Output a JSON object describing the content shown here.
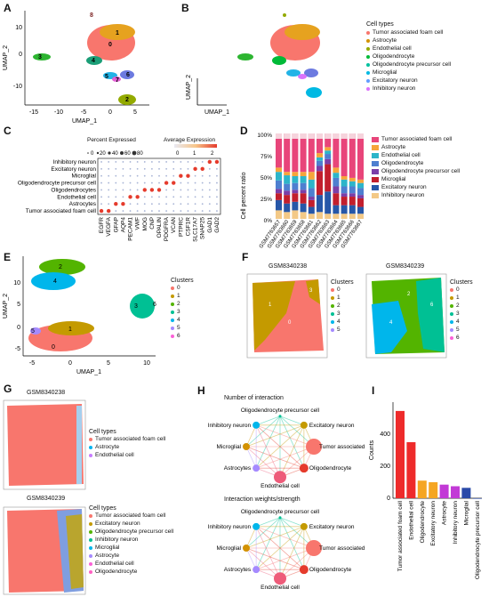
{
  "panels": {
    "A": {
      "label": "A",
      "xlabel": "UMAP_1",
      "ylabel": "UMAP_2",
      "xticks": [
        "-15",
        "-10",
        "-5",
        "0",
        "5"
      ],
      "yticks": [
        "10",
        "0",
        "-10"
      ],
      "cluster_ids": [
        "0",
        "1",
        "2",
        "3",
        "4",
        "5",
        "6",
        "7",
        "8"
      ]
    },
    "B": {
      "label": "B",
      "xlabel": "UMAP_1",
      "ylabel": "UMAP_2",
      "legend_title": "Cell types",
      "legend": [
        {
          "name": "Tumor associated foam cell",
          "color": "#f8766d"
        },
        {
          "name": "Astrocyte",
          "color": "#d39200"
        },
        {
          "name": "Endothelial cell",
          "color": "#93aa00"
        },
        {
          "name": "Oligodendrocyte",
          "color": "#00ba38"
        },
        {
          "name": "Oligodendrocyte precursor cell",
          "color": "#00c19f"
        },
        {
          "name": "Microglial",
          "color": "#00b9e3"
        },
        {
          "name": "Excitatory neuron",
          "color": "#619cff"
        },
        {
          "name": "Inhibitory neuron",
          "color": "#db72fb"
        }
      ]
    },
    "C": {
      "label": "C",
      "pct_title": "Percent Expressed",
      "pct_ticks": [
        "0",
        "20",
        "40",
        "60",
        "80"
      ],
      "avg_title": "Average Expression",
      "avg_ticks": [
        "0",
        "1",
        "2"
      ],
      "rows": [
        "Inhibitory neuron",
        "Excitatory neuron",
        "Microglial",
        "Oligodendrocyte precursor cell",
        "Oligodendrocytes",
        "Endothelial cell",
        "Astrocytes",
        "Tumor associated foam cell"
      ],
      "genes": [
        "EGFR",
        "VEGFA",
        "GFAP",
        "AQP4",
        "PECAM1",
        "VWF",
        "MOG",
        "CNP",
        "OPALIN",
        "PDGFRA",
        "VCAN",
        "PTPRC",
        "CSF1R",
        "SLC17A7",
        "SNAP25",
        "GAD1",
        "GAD2"
      ]
    },
    "D": {
      "label": "D",
      "ylabel": "Cell percent ratio",
      "yticks": [
        "100%",
        "75%",
        "50%",
        "25%",
        "0%"
      ],
      "samples": [
        "GSM7763657",
        "GSM7763660",
        "GSM7763659",
        "GSM7763658",
        "GSM7763661",
        "GSM7763662",
        "GSM7763663",
        "GSM7763664",
        "GSM7763665",
        "GSM7763666",
        "GSM7763667"
      ],
      "legend": [
        {
          "name": "Tumor associated foam cell",
          "color": "#e8457a"
        },
        {
          "name": "Astrocyte",
          "color": "#f6a53a"
        },
        {
          "name": "Endothelial cell",
          "color": "#2db5c9"
        },
        {
          "name": "Oligodendrocyte",
          "color": "#4e7fd0"
        },
        {
          "name": "Oligodendrocyte precursor cell",
          "color": "#7b3fa8"
        },
        {
          "name": "Microglial",
          "color": "#c21f2d"
        },
        {
          "name": "Excitatory neuron",
          "color": "#2757a8"
        },
        {
          "name": "Inhibitory neuron",
          "color": "#f3c987"
        }
      ]
    },
    "E": {
      "label": "E",
      "xlabel": "UMAP_1",
      "ylabel": "UMAP_2",
      "xticks": [
        "-5",
        "0",
        "5",
        "10"
      ],
      "yticks": [
        "10",
        "5",
        "0",
        "-5"
      ],
      "legend_title": "Clusters",
      "clusters": [
        {
          "name": "0",
          "color": "#f8766d"
        },
        {
          "name": "1",
          "color": "#c49a00"
        },
        {
          "name": "2",
          "color": "#53b400"
        },
        {
          "name": "3",
          "color": "#00c094"
        },
        {
          "name": "4",
          "color": "#00b6eb"
        },
        {
          "name": "5",
          "color": "#a58aff"
        },
        {
          "name": "6",
          "color": "#fb61d7"
        }
      ]
    },
    "F": {
      "label": "F",
      "sample1": "GSM8340238",
      "sample2": "GSM8340239",
      "legend_title": "Clusters",
      "clusters1": [
        "0",
        "1",
        "2",
        "3",
        "4",
        "5"
      ],
      "clusters2": [
        "0",
        "1",
        "2",
        "3",
        "4",
        "5",
        "6"
      ]
    },
    "G": {
      "label": "G",
      "sample1": "GSM8340238",
      "sample2": "GSM8340239",
      "legend_title": "Cell types",
      "legend1": [
        {
          "name": "Tumor associated foam cell",
          "color": "#f8766d"
        },
        {
          "name": "Astrocyte",
          "color": "#00b4f0"
        },
        {
          "name": "Endothelial cell",
          "color": "#c77cff"
        }
      ],
      "legend2": [
        {
          "name": "Tumor associated foam cell",
          "color": "#f8766d"
        },
        {
          "name": "Excitatory neuron",
          "color": "#c49a00"
        },
        {
          "name": "Oligodendrocyte precursor cell",
          "color": "#53b400"
        },
        {
          "name": "Inhibitory neuron",
          "color": "#00c094"
        },
        {
          "name": "Microglial",
          "color": "#00b6eb"
        },
        {
          "name": "Astrocyte",
          "color": "#a58aff"
        },
        {
          "name": "Endothelial cell",
          "color": "#fb61d7"
        },
        {
          "name": "Oligodendrocyte",
          "color": "#ff61c3"
        }
      ]
    },
    "H": {
      "label": "H",
      "title1": "Number of interaction",
      "title2": "Interaction weights/strength",
      "nodes": [
        "Oligodendrocyte precursor cell",
        "Excitatory neuron",
        "Tumor associated foam cell",
        "Oligodendrocyte",
        "Endothelial cell",
        "Astrocytes",
        "Microglial",
        "Inhibitory neuron"
      ]
    },
    "I": {
      "label": "I",
      "ylabel": "Counts",
      "yticks": [
        "400",
        "200",
        "0"
      ]
    }
  },
  "chart_data": {
    "type": "bar",
    "categories": [
      "Tumor associated foam cell",
      "Endothelial cell",
      "Oligodendrocyte",
      "Excitatory neuron",
      "Astrocyte",
      "Inhibitory neuron",
      "Microglial",
      "Oligodendrocyte precursor cell"
    ],
    "values": [
      545,
      350,
      110,
      100,
      85,
      75,
      65,
      0
    ],
    "colors": [
      "#ee2b2b",
      "#ee2b2b",
      "#f5a623",
      "#f5a623",
      "#c23ad6",
      "#c23ad6",
      "#2a4aa8",
      "#2a4aa8"
    ],
    "ylabel": "Counts",
    "ylim": [
      0,
      600
    ]
  }
}
